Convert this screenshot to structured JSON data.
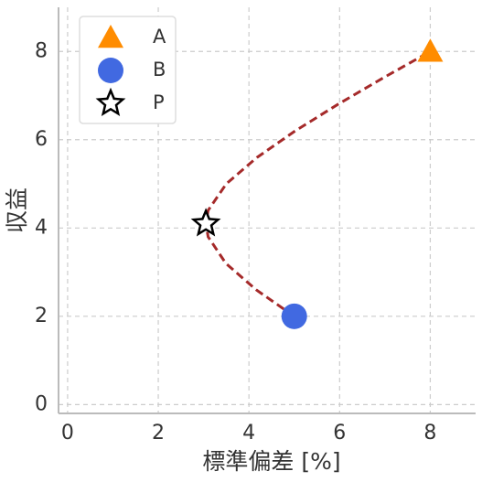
{
  "chart_data": {
    "type": "scatter",
    "xlabel": "標準偏差 [%]",
    "ylabel": "収益",
    "xlim": [
      -0.2,
      9
    ],
    "ylim": [
      -0.2,
      9
    ],
    "xticks": [
      0,
      2,
      4,
      6,
      8
    ],
    "yticks": [
      0,
      2,
      4,
      6,
      8
    ],
    "grid": true,
    "legend": "upper left",
    "curve": {
      "color": "#a52a2a",
      "x": [
        5,
        4.16,
        3.49,
        3.1,
        3.05,
        3.1,
        3.5,
        4.18,
        5.02,
        5.96,
        6.96,
        8
      ],
      "y": [
        2,
        2.6,
        3.2,
        3.8,
        4.1,
        4.4,
        5,
        5.6,
        6.2,
        6.8,
        7.4,
        8
      ]
    },
    "points": [
      {
        "name": "A",
        "color": "#ff8c00",
        "marker": "triangle",
        "x": 8,
        "y": 8
      },
      {
        "name": "B",
        "color": "#4169e1",
        "marker": "circle",
        "x": 5,
        "y": 2
      },
      {
        "name": "P",
        "color": "#ffffff",
        "marker": "star",
        "x": 3.05,
        "y": 4.1
      }
    ]
  }
}
